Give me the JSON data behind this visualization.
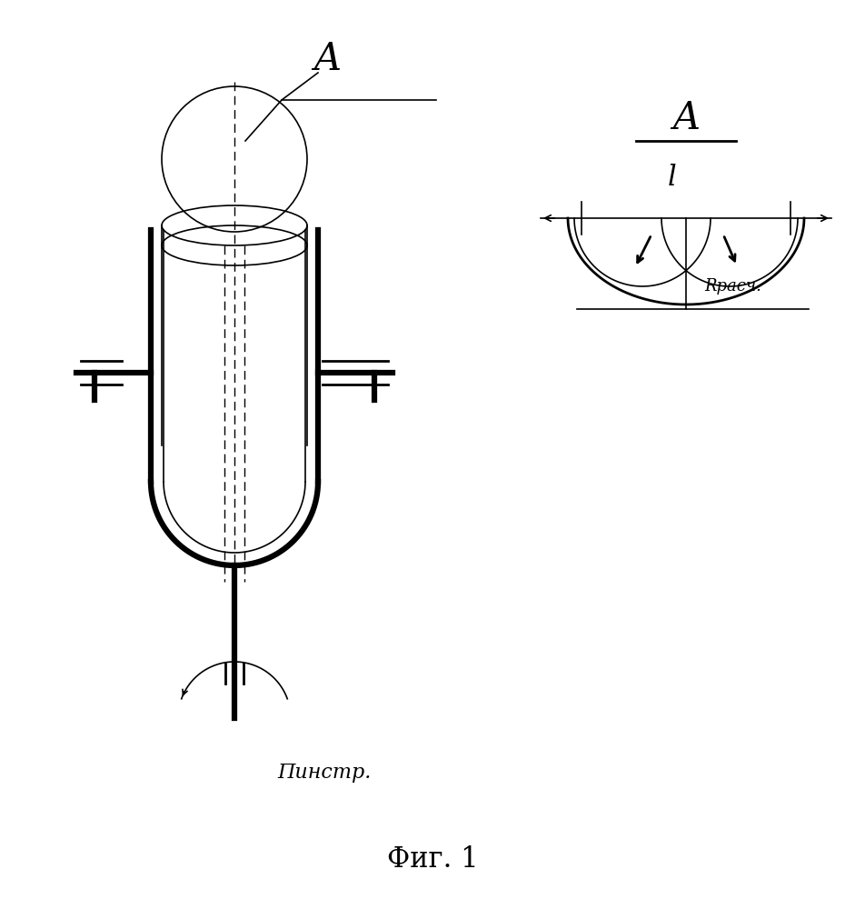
{
  "bg_color": "#ffffff",
  "line_color": "#000000",
  "fig_title": "Фиг. 1",
  "label_A_left": "A",
  "label_A_right": "A",
  "label_l": "l",
  "label_R": "Rрасч.",
  "label_P": "Пинстр."
}
